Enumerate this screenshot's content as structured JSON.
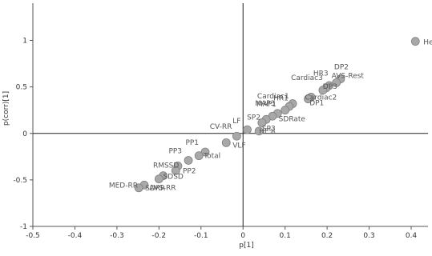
{
  "chart_data": {
    "type": "scatter",
    "xlabel": "p[1]",
    "ylabel": "p(corr)[1]",
    "xlim": [
      -0.5,
      0.44
    ],
    "ylim": [
      -1,
      1.4
    ],
    "xticks": [
      "-0.5",
      "-0.4",
      "-0.3",
      "-0.2",
      "-0.1",
      "0",
      "0.1",
      "0.2",
      "0.3",
      "0.4"
    ],
    "yticks": [
      "-1",
      "-0.5",
      "0",
      "0.5",
      "1"
    ],
    "grid": false,
    "zero_lines": true,
    "marker_color": "#a8a8a8",
    "marker_edge": "#808080",
    "points": [
      {
        "label": "Height",
        "x": 0.41,
        "y": 0.99
      },
      {
        "label": "DP2",
        "x": 0.232,
        "y": 0.585
      },
      {
        "label": "AVS-Rest",
        "x": 0.222,
        "y": 0.545
      },
      {
        "label": "DP3",
        "x": 0.205,
        "y": 0.515
      },
      {
        "label": "Cardiac3",
        "x": 0.198,
        "y": 0.49
      },
      {
        "label": "HR3",
        "x": 0.19,
        "y": 0.465
      },
      {
        "label": "DP1",
        "x": 0.162,
        "y": 0.39
      },
      {
        "label": "Cardiac2",
        "x": 0.155,
        "y": 0.37
      },
      {
        "label": "HR1",
        "x": 0.118,
        "y": 0.32
      },
      {
        "label": "Cardiac1",
        "x": 0.11,
        "y": 0.29
      },
      {
        "label": "SDRate",
        "x": 0.1,
        "y": 0.25
      },
      {
        "label": "MAP3",
        "x": 0.082,
        "y": 0.215
      },
      {
        "label": "MAP1",
        "x": 0.07,
        "y": 0.185
      },
      {
        "label": "SP2",
        "x": 0.055,
        "y": 0.15
      },
      {
        "label": "SP3",
        "x": 0.045,
        "y": 0.115
      },
      {
        "label": "LF",
        "x": 0.01,
        "y": 0.04
      },
      {
        "label": "HF%",
        "x": 0.038,
        "y": 0.025
      },
      {
        "label": "CV-RR",
        "x": -0.015,
        "y": -0.03
      },
      {
        "label": "VLF",
        "x": -0.04,
        "y": -0.1
      },
      {
        "label": "PP1",
        "x": -0.09,
        "y": -0.2
      },
      {
        "label": "Total",
        "x": -0.105,
        "y": -0.24
      },
      {
        "label": "PP3",
        "x": -0.13,
        "y": -0.29
      },
      {
        "label": "PP2",
        "x": -0.155,
        "y": -0.35
      },
      {
        "label": "RMSSD",
        "x": -0.16,
        "y": -0.4
      },
      {
        "label": "SDSD",
        "x": -0.19,
        "y": -0.455
      },
      {
        "label": "AVS-RR",
        "x": -0.2,
        "y": -0.49
      },
      {
        "label": "MED-RR",
        "x": -0.235,
        "y": -0.555
      },
      {
        "label": "SDRR",
        "x": -0.248,
        "y": -0.585
      }
    ]
  }
}
